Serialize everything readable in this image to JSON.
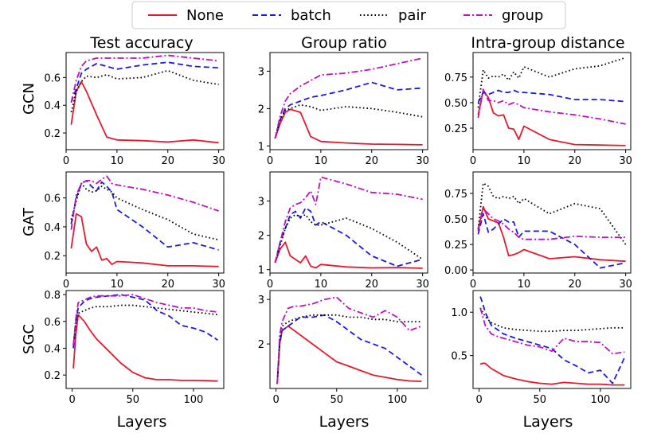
{
  "legend": {
    "entries": [
      {
        "name": "None",
        "color": "#e8192c",
        "dash": "solid"
      },
      {
        "name": "batch",
        "color": "#1a1ae6",
        "dash": "dashed"
      },
      {
        "name": "pair",
        "color": "#000000",
        "dash": "dotted"
      },
      {
        "name": "group",
        "color": "#c010c0",
        "dash": "dashdot"
      }
    ]
  },
  "column_titles": [
    "Test accuracy",
    "Group ratio",
    "Intra-group distance"
  ],
  "row_labels": [
    "GCN",
    "GAT",
    "SGC"
  ],
  "xlabel": "Layers",
  "chart_data": [
    {
      "type": "line",
      "row": "GCN",
      "title": "Test accuracy",
      "xlim": [
        0,
        31
      ],
      "ylim": [
        0.08,
        0.78
      ],
      "xticks": [
        0,
        10,
        20,
        30
      ],
      "yticks": [
        0.2,
        0.4,
        0.6
      ],
      "x": [
        1,
        2,
        3,
        4,
        6,
        8,
        10,
        15,
        20,
        25,
        30
      ],
      "series": [
        {
          "name": "None",
          "values": [
            0.26,
            0.5,
            0.57,
            0.5,
            0.33,
            0.17,
            0.15,
            0.145,
            0.135,
            0.15,
            0.13
          ]
        },
        {
          "name": "batch",
          "values": [
            0.42,
            0.52,
            0.63,
            0.66,
            0.7,
            0.68,
            0.66,
            0.69,
            0.71,
            0.68,
            0.67
          ]
        },
        {
          "name": "pair",
          "values": [
            0.35,
            0.5,
            0.57,
            0.61,
            0.6,
            0.62,
            0.59,
            0.6,
            0.65,
            0.58,
            0.55
          ]
        },
        {
          "name": "group",
          "values": [
            0.42,
            0.58,
            0.68,
            0.72,
            0.74,
            0.74,
            0.74,
            0.74,
            0.76,
            0.74,
            0.72
          ]
        }
      ]
    },
    {
      "type": "line",
      "row": "GCN",
      "title": "Group ratio",
      "xlim": [
        0,
        31
      ],
      "ylim": [
        0.9,
        3.5
      ],
      "xticks": [
        0,
        10,
        20,
        30
      ],
      "yticks": [
        1,
        2,
        3
      ],
      "x": [
        1,
        2,
        3,
        4,
        6,
        8,
        10,
        15,
        20,
        25,
        30
      ],
      "series": [
        {
          "name": "None",
          "values": [
            1.2,
            1.6,
            1.9,
            1.98,
            1.9,
            1.25,
            1.12,
            1.08,
            1.05,
            1.04,
            1.03
          ]
        },
        {
          "name": "batch",
          "values": [
            1.2,
            1.7,
            2.0,
            2.1,
            2.2,
            2.3,
            2.35,
            2.5,
            2.7,
            2.5,
            2.55
          ]
        },
        {
          "name": "pair",
          "values": [
            1.2,
            1.7,
            1.95,
            2.0,
            2.1,
            2.05,
            1.95,
            2.05,
            2.0,
            1.9,
            1.78
          ]
        },
        {
          "name": "group",
          "values": [
            1.2,
            1.8,
            2.2,
            2.4,
            2.6,
            2.75,
            2.9,
            2.95,
            3.05,
            3.2,
            3.35
          ]
        }
      ]
    },
    {
      "type": "line",
      "row": "GCN",
      "title": "Intra-group distance",
      "xlim": [
        0,
        31
      ],
      "ylim": [
        0.04,
        0.99
      ],
      "xticks": [
        0,
        10,
        20,
        30
      ],
      "yticks": [
        0.25,
        0.5,
        0.75
      ],
      "x": [
        1,
        2,
        3,
        4,
        5,
        6,
        7,
        8,
        9,
        10,
        15,
        20,
        25,
        30
      ],
      "series": [
        {
          "name": "None",
          "values": [
            0.38,
            0.62,
            0.55,
            0.4,
            0.37,
            0.38,
            0.25,
            0.24,
            0.14,
            0.27,
            0.14,
            0.09,
            0.085,
            0.08
          ]
        },
        {
          "name": "batch",
          "values": [
            0.5,
            0.6,
            0.58,
            0.6,
            0.62,
            0.6,
            0.6,
            0.62,
            0.6,
            0.6,
            0.58,
            0.53,
            0.53,
            0.51
          ]
        },
        {
          "name": "pair",
          "values": [
            0.45,
            0.82,
            0.74,
            0.76,
            0.75,
            0.78,
            0.72,
            0.8,
            0.74,
            0.85,
            0.75,
            0.83,
            0.86,
            0.94
          ]
        },
        {
          "name": "group",
          "values": [
            0.35,
            0.63,
            0.52,
            0.52,
            0.5,
            0.52,
            0.48,
            0.5,
            0.48,
            0.45,
            0.41,
            0.38,
            0.34,
            0.29
          ]
        }
      ]
    },
    {
      "type": "line",
      "row": "GAT",
      "title": "Test accuracy",
      "xlim": [
        0,
        31
      ],
      "ylim": [
        0.08,
        0.78
      ],
      "xticks": [
        0,
        10,
        20,
        30
      ],
      "yticks": [
        0.2,
        0.4,
        0.6
      ],
      "x": [
        1,
        2,
        3,
        4,
        5,
        6,
        7,
        8,
        9,
        10,
        15,
        20,
        25,
        30
      ],
      "series": [
        {
          "name": "None",
          "values": [
            0.25,
            0.49,
            0.47,
            0.28,
            0.23,
            0.26,
            0.17,
            0.18,
            0.14,
            0.16,
            0.15,
            0.13,
            0.13,
            0.125
          ]
        },
        {
          "name": "batch",
          "values": [
            0.42,
            0.6,
            0.7,
            0.72,
            0.68,
            0.65,
            0.71,
            0.68,
            0.64,
            0.52,
            0.4,
            0.26,
            0.29,
            0.24
          ]
        },
        {
          "name": "pair",
          "values": [
            0.45,
            0.58,
            0.7,
            0.66,
            0.64,
            0.65,
            0.68,
            0.66,
            0.64,
            0.6,
            0.52,
            0.45,
            0.35,
            0.31
          ]
        },
        {
          "name": "group",
          "values": [
            0.38,
            0.62,
            0.7,
            0.72,
            0.72,
            0.7,
            0.73,
            0.75,
            0.7,
            0.69,
            0.66,
            0.62,
            0.57,
            0.51
          ]
        }
      ]
    },
    {
      "type": "line",
      "row": "GAT",
      "title": "Group ratio",
      "xlim": [
        0,
        31
      ],
      "ylim": [
        0.9,
        3.85
      ],
      "xticks": [
        0,
        10,
        20,
        30
      ],
      "yticks": [
        1,
        2,
        3
      ],
      "x": [
        1,
        2,
        3,
        4,
        5,
        6,
        7,
        8,
        9,
        10,
        15,
        20,
        25,
        30
      ],
      "series": [
        {
          "name": "None",
          "values": [
            1.2,
            1.6,
            1.8,
            1.4,
            1.3,
            1.2,
            1.4,
            1.1,
            1.05,
            1.15,
            1.08,
            1.05,
            1.06,
            1.04
          ]
        },
        {
          "name": "batch",
          "values": [
            1.2,
            1.8,
            2.2,
            2.6,
            2.7,
            2.5,
            2.8,
            2.7,
            2.3,
            2.4,
            2.0,
            1.4,
            1.1,
            1.3
          ]
        },
        {
          "name": "pair",
          "values": [
            1.2,
            1.7,
            2.2,
            2.5,
            2.6,
            2.55,
            2.6,
            2.4,
            2.3,
            2.3,
            2.5,
            2.2,
            1.8,
            1.3
          ]
        },
        {
          "name": "group",
          "values": [
            1.2,
            1.8,
            2.4,
            2.8,
            2.9,
            2.95,
            3.1,
            3.3,
            2.9,
            3.7,
            3.5,
            3.25,
            3.2,
            3.05
          ]
        }
      ]
    },
    {
      "type": "line",
      "row": "GAT",
      "title": "Intra-group distance",
      "xlim": [
        0,
        31
      ],
      "ylim": [
        -0.03,
        0.96
      ],
      "xticks": [
        0,
        10,
        20,
        30
      ],
      "yticks": [
        0.0,
        0.25,
        0.5,
        0.75
      ],
      "x": [
        1,
        2,
        3,
        4,
        5,
        6,
        7,
        8,
        9,
        10,
        15,
        20,
        25,
        30
      ],
      "series": [
        {
          "name": "None",
          "values": [
            0.4,
            0.62,
            0.5,
            0.48,
            0.46,
            0.32,
            0.14,
            0.15,
            0.17,
            0.2,
            0.11,
            0.13,
            0.1,
            0.085
          ]
        },
        {
          "name": "batch",
          "values": [
            0.35,
            0.55,
            0.37,
            0.4,
            0.45,
            0.5,
            0.47,
            0.47,
            0.32,
            0.38,
            0.38,
            0.25,
            0.02,
            0.07
          ]
        },
        {
          "name": "pair",
          "values": [
            0.4,
            0.85,
            0.82,
            0.72,
            0.7,
            0.72,
            0.7,
            0.72,
            0.65,
            0.7,
            0.55,
            0.65,
            0.6,
            0.25
          ]
        },
        {
          "name": "group",
          "values": [
            0.38,
            0.6,
            0.55,
            0.5,
            0.48,
            0.45,
            0.4,
            0.37,
            0.32,
            0.3,
            0.3,
            0.33,
            0.32,
            0.32
          ]
        }
      ]
    },
    {
      "type": "line",
      "row": "SGC",
      "title": "Test accuracy",
      "xlim": [
        -5,
        125
      ],
      "ylim": [
        0.1,
        0.83
      ],
      "xticks": [
        0,
        50,
        100
      ],
      "yticks": [
        0.2,
        0.4,
        0.6,
        0.8
      ],
      "x": [
        1,
        3,
        5,
        10,
        15,
        20,
        30,
        40,
        50,
        60,
        70,
        80,
        90,
        100,
        110,
        120
      ],
      "series": [
        {
          "name": "None",
          "values": [
            0.25,
            0.5,
            0.65,
            0.6,
            0.53,
            0.47,
            0.38,
            0.29,
            0.22,
            0.18,
            0.165,
            0.165,
            0.16,
            0.16,
            0.158,
            0.155
          ]
        },
        {
          "name": "batch",
          "values": [
            0.4,
            0.6,
            0.7,
            0.75,
            0.77,
            0.78,
            0.79,
            0.8,
            0.78,
            0.76,
            0.68,
            0.64,
            0.57,
            0.55,
            0.52,
            0.46
          ]
        },
        {
          "name": "pair",
          "values": [
            0.42,
            0.58,
            0.66,
            0.68,
            0.7,
            0.71,
            0.71,
            0.72,
            0.72,
            0.71,
            0.7,
            0.69,
            0.68,
            0.67,
            0.66,
            0.65
          ]
        },
        {
          "name": "group",
          "values": [
            0.42,
            0.62,
            0.74,
            0.76,
            0.78,
            0.79,
            0.79,
            0.79,
            0.8,
            0.77,
            0.74,
            0.72,
            0.7,
            0.7,
            0.68,
            0.67
          ]
        }
      ]
    },
    {
      "type": "line",
      "row": "SGC",
      "title": "Group ratio",
      "xlim": [
        -5,
        125
      ],
      "ylim": [
        1.0,
        3.2
      ],
      "xticks": [
        0,
        50,
        100
      ],
      "yticks": [
        2,
        3
      ],
      "x": [
        1,
        3,
        5,
        10,
        15,
        20,
        30,
        40,
        50,
        60,
        70,
        80,
        90,
        100,
        110,
        120
      ],
      "series": [
        {
          "name": "None",
          "values": [
            1.1,
            2.0,
            2.3,
            2.4,
            2.3,
            2.2,
            2.0,
            1.8,
            1.6,
            1.5,
            1.4,
            1.3,
            1.25,
            1.2,
            1.17,
            1.16
          ]
        },
        {
          "name": "batch",
          "values": [
            1.1,
            2.0,
            2.3,
            2.4,
            2.5,
            2.6,
            2.6,
            2.65,
            2.5,
            2.3,
            2.1,
            2.0,
            1.9,
            1.7,
            1.5,
            1.3
          ]
        },
        {
          "name": "pair",
          "values": [
            1.1,
            2.1,
            2.4,
            2.5,
            2.55,
            2.6,
            2.65,
            2.65,
            2.65,
            2.6,
            2.6,
            2.55,
            2.55,
            2.5,
            2.5,
            2.5
          ]
        },
        {
          "name": "group",
          "values": [
            1.1,
            2.2,
            2.5,
            2.8,
            2.85,
            2.85,
            2.9,
            3.0,
            3.05,
            2.8,
            2.7,
            2.6,
            2.75,
            2.6,
            2.3,
            2.4
          ]
        }
      ]
    },
    {
      "type": "line",
      "row": "SGC",
      "title": "Intra-group distance",
      "xlim": [
        -5,
        125
      ],
      "ylim": [
        0.12,
        1.25
      ],
      "xticks": [
        0,
        50,
        100
      ],
      "yticks": [
        0.5,
        1.0
      ],
      "x": [
        1,
        3,
        5,
        10,
        15,
        20,
        30,
        40,
        50,
        60,
        70,
        80,
        90,
        100,
        110,
        120
      ],
      "series": [
        {
          "name": "None",
          "values": [
            0.4,
            0.41,
            0.41,
            0.35,
            0.31,
            0.27,
            0.23,
            0.2,
            0.18,
            0.17,
            0.19,
            0.18,
            0.17,
            0.17,
            0.16,
            0.16
          ]
        },
        {
          "name": "batch",
          "values": [
            1.18,
            1.1,
            1.0,
            0.85,
            0.8,
            0.75,
            0.7,
            0.66,
            0.62,
            0.58,
            0.45,
            0.38,
            0.3,
            0.33,
            0.18,
            0.48
          ]
        },
        {
          "name": "pair",
          "values": [
            1.05,
            1.0,
            0.95,
            0.88,
            0.85,
            0.82,
            0.8,
            0.79,
            0.78,
            0.78,
            0.79,
            0.79,
            0.8,
            0.81,
            0.82,
            0.82
          ]
        },
        {
          "name": "group",
          "values": [
            1.05,
            0.95,
            0.85,
            0.75,
            0.72,
            0.7,
            0.66,
            0.62,
            0.6,
            0.55,
            0.7,
            0.66,
            0.66,
            0.65,
            0.52,
            0.54
          ]
        }
      ]
    }
  ]
}
